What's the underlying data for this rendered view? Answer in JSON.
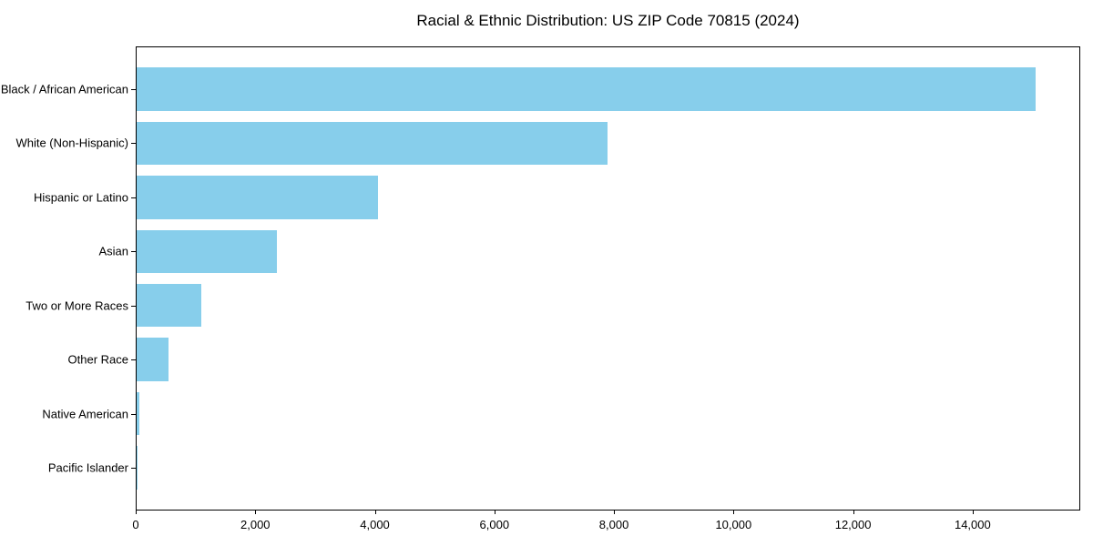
{
  "chart_data": {
    "type": "bar",
    "orientation": "horizontal",
    "title": "Racial & Ethnic Distribution: US ZIP Code 70815 (2024)",
    "categories": [
      "Black / African American",
      "White (Non-Hispanic)",
      "Hispanic or Latino",
      "Asian",
      "Two or More Races",
      "Other Race",
      "Native American",
      "Pacific Islander"
    ],
    "values": [
      15040,
      7870,
      4030,
      2340,
      1080,
      540,
      40,
      10
    ],
    "xlabel": "",
    "ylabel": "",
    "xlim": [
      0,
      15800
    ],
    "xticks": [
      0,
      2000,
      4000,
      6000,
      8000,
      10000,
      12000,
      14000
    ],
    "xtick_labels": [
      "0",
      "2,000",
      "4,000",
      "6,000",
      "8,000",
      "10,000",
      "12,000",
      "14,000"
    ],
    "bar_color": "#87CEEB",
    "bar_relative_height": 0.8,
    "grid": false,
    "legend": null,
    "background_color": "#ffffff"
  }
}
